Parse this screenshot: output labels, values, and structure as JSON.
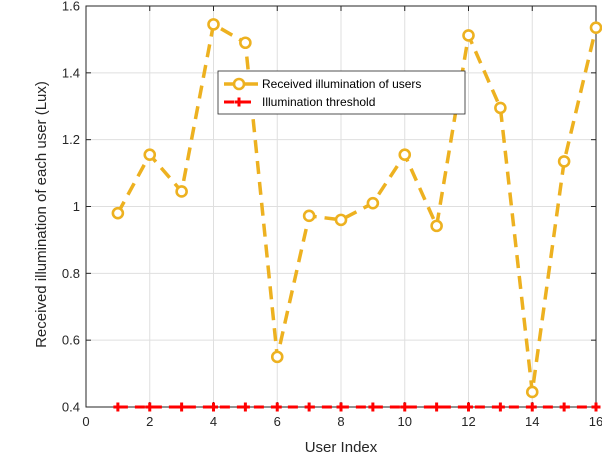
{
  "chart_data": {
    "type": "line",
    "title": "",
    "xlabel": "User Index",
    "ylabel": "Received illumination of each user (Lux)",
    "xlim": [
      0,
      16
    ],
    "ylim": [
      0.4,
      1.6
    ],
    "xticks": [
      "0",
      "2",
      "4",
      "6",
      "8",
      "10",
      "12",
      "14",
      "16"
    ],
    "yticks": [
      "0.4",
      "0.6",
      "0.8",
      "1",
      "1.2",
      "1.4",
      "1.6"
    ],
    "grid": true,
    "legend_position": "top-right",
    "x": [
      1,
      2,
      3,
      4,
      5,
      6,
      7,
      8,
      9,
      10,
      11,
      12,
      13,
      14,
      15,
      16
    ],
    "series": [
      {
        "name": "Received illumination of users",
        "color": "#EDB120",
        "line_style": "dashed",
        "marker": "circle",
        "values": [
          0.98,
          1.155,
          1.045,
          1.545,
          1.49,
          0.55,
          0.972,
          0.96,
          1.01,
          1.155,
          0.942,
          1.512,
          1.295,
          0.445,
          1.135,
          1.535
        ]
      },
      {
        "name": "Illumination threshold",
        "color": "#FF0000",
        "line_style": "dashed",
        "marker": "plus",
        "values": [
          0.4,
          0.4,
          0.4,
          0.4,
          0.4,
          0.4,
          0.4,
          0.4,
          0.4,
          0.4,
          0.4,
          0.4,
          0.4,
          0.4,
          0.4,
          0.4
        ]
      }
    ]
  }
}
